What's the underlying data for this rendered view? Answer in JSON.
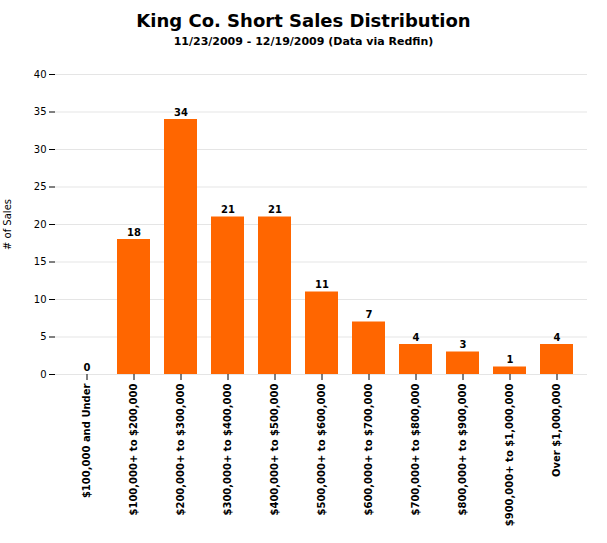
{
  "chart_data": {
    "type": "bar",
    "title": "King Co. Short Sales Distribution",
    "subtitle": "11/23/2009 - 12/19/2009 (Data via Redfin)",
    "categories": [
      "$100,000 and Under",
      "$100,000+ to $200,000",
      "$200,000+ to $300,000",
      "$300,000+ to $400,000",
      "$400,000+ to $500,000",
      "$500,000+ to $600,000",
      "$600,000+ to $700,000",
      "$700,000+ to $800,000",
      "$800,000+ to $900,000",
      "$900,000+ to $1,000,000",
      "Over $1,000,000"
    ],
    "values": [
      0,
      18,
      34,
      21,
      21,
      11,
      7,
      4,
      3,
      1,
      4
    ],
    "color": "#FF6600",
    "ylabel": "# of Sales",
    "ylim": [
      0,
      40
    ],
    "yticks": [
      0,
      5,
      10,
      15,
      20,
      25,
      30,
      35,
      40
    ],
    "grid": true,
    "data_labels": true
  }
}
